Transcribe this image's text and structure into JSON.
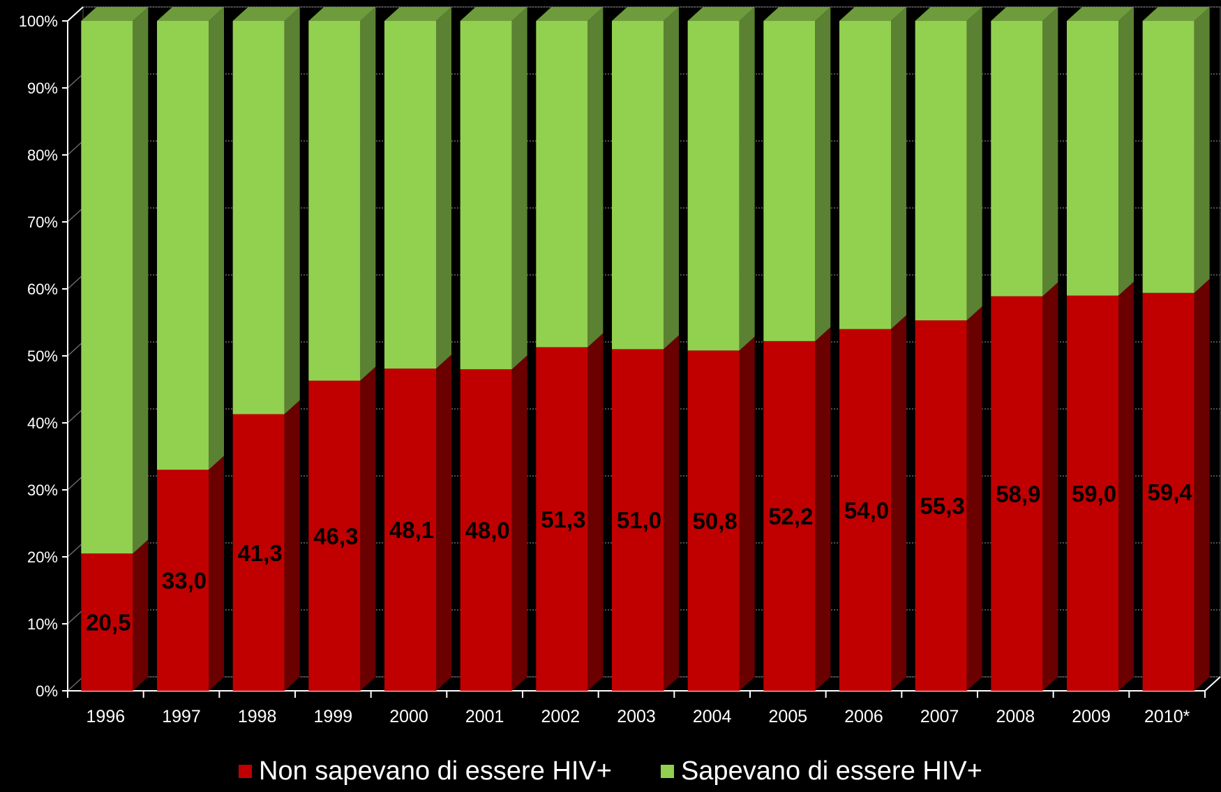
{
  "chart_data": {
    "type": "bar",
    "stacked": true,
    "percent_stacked": true,
    "three_d": true,
    "categories": [
      "1996",
      "1997",
      "1998",
      "1999",
      "2000",
      "2001",
      "2002",
      "2003",
      "2004",
      "2005",
      "2006",
      "2007",
      "2008",
      "2009",
      "2010*"
    ],
    "series": [
      {
        "name": "Non sapevano di essere HIV+",
        "color": "#c00000",
        "values": [
          20.5,
          33.0,
          41.3,
          46.3,
          48.1,
          48.0,
          51.3,
          51.0,
          50.8,
          52.2,
          54.0,
          55.3,
          58.9,
          59.0,
          59.4
        ],
        "data_labels": [
          "20,5",
          "33,0",
          "41,3",
          "46,3",
          "48,1",
          "48,0",
          "51,3",
          "51,0",
          "50,8",
          "52,2",
          "54,0",
          "55,3",
          "58,9",
          "59,0",
          "59,4"
        ]
      },
      {
        "name": "Sapevano di essere HIV+",
        "color": "#92d050",
        "values": [
          79.5,
          67.0,
          58.7,
          53.7,
          51.9,
          52.0,
          48.7,
          49.0,
          49.2,
          47.8,
          46.0,
          44.7,
          41.1,
          41.0,
          40.6
        ]
      }
    ],
    "ylim": [
      0,
      100
    ],
    "yticks": [
      "0%",
      "10%",
      "20%",
      "30%",
      "40%",
      "50%",
      "60%",
      "70%",
      "80%",
      "90%",
      "100%"
    ],
    "xlabel": "",
    "ylabel": "",
    "grid": true,
    "legend_position": "bottom"
  }
}
